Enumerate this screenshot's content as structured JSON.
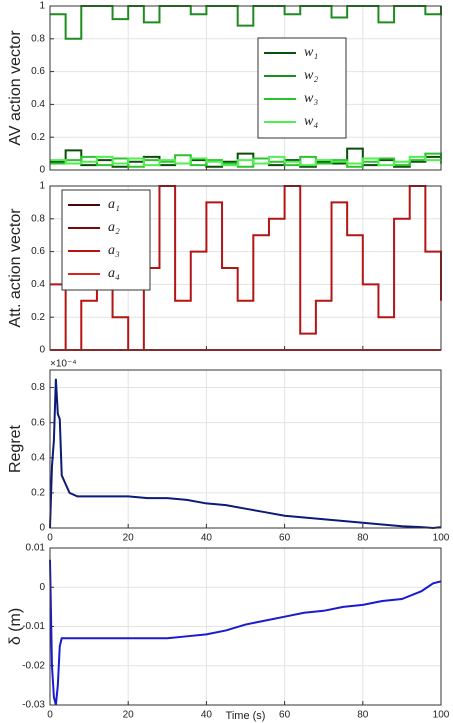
{
  "chart_data": [
    {
      "type": "line",
      "step": true,
      "ylabel": "AV action vector",
      "x": [
        0,
        4,
        8,
        12,
        16,
        20,
        24,
        28,
        32,
        36,
        40,
        44,
        48,
        52,
        56,
        60,
        64,
        68,
        72,
        76,
        80,
        84,
        88,
        92,
        96,
        100
      ],
      "series": [
        {
          "name": "w₁",
          "color": "#0b4d0b",
          "values": [
            0.05,
            0.12,
            0.03,
            0.06,
            0.02,
            0.05,
            0.08,
            0.03,
            0.04,
            0.06,
            0.02,
            0.05,
            0.1,
            0.04,
            0.03,
            0.06,
            0.02,
            0.05,
            0.04,
            0.13,
            0.03,
            0.06,
            0.02,
            0.05,
            0.08,
            0.04
          ]
        },
        {
          "name": "w₂",
          "color": "#1e8c1e",
          "values": [
            0.95,
            0.8,
            1,
            1,
            0.92,
            1,
            0.9,
            1,
            1,
            0.95,
            1,
            1,
            0.88,
            1,
            1,
            0.95,
            1,
            1,
            0.93,
            1,
            1,
            0.9,
            1,
            1,
            0.95,
            1
          ]
        },
        {
          "name": "w₃",
          "color": "#2fc22f",
          "values": [
            0.04,
            0.06,
            0.08,
            0.03,
            0.07,
            0.02,
            0.06,
            0.05,
            0.09,
            0.03,
            0.06,
            0.04,
            0.02,
            0.07,
            0.05,
            0.03,
            0.08,
            0.04,
            0.06,
            0.02,
            0.05,
            0.07,
            0.03,
            0.06,
            0.1,
            0.04
          ]
        },
        {
          "name": "w₄",
          "color": "#4ef04e",
          "values": [
            0.06,
            0.04,
            0.05,
            0.08,
            0.04,
            0.07,
            0.03,
            0.06,
            0.04,
            0.07,
            0.05,
            0.03,
            0.06,
            0.04,
            0.08,
            0.05,
            0.03,
            0.06,
            0.05,
            0.04,
            0.07,
            0.03,
            0.05,
            0.08,
            0.06,
            0.05
          ]
        }
      ],
      "xlim": [
        0,
        100
      ],
      "xticks": [
        0,
        20,
        40,
        60,
        80,
        100
      ],
      "show_xtick_labels": false,
      "ylim": [
        0,
        1
      ],
      "yticks": [
        0,
        0.2,
        0.4,
        0.6,
        0.8,
        1
      ],
      "grid": true,
      "legend": "center right"
    },
    {
      "type": "line",
      "step": true,
      "ylabel": "Att. action vector",
      "x": [
        0,
        4,
        8,
        12,
        16,
        20,
        24,
        28,
        32,
        36,
        40,
        44,
        48,
        52,
        56,
        60,
        64,
        68,
        72,
        76,
        80,
        84,
        88,
        92,
        96,
        100
      ],
      "series": [
        {
          "name": "a₁",
          "color": "#4a0505",
          "values": [
            0,
            0,
            0,
            0,
            0,
            0,
            0,
            0,
            0,
            0,
            0,
            0,
            0,
            0,
            0,
            0,
            0,
            0,
            0,
            0,
            0,
            0,
            0,
            0,
            0,
            0
          ]
        },
        {
          "name": "a₂",
          "color": "#7a0808",
          "values": [
            0,
            0,
            0,
            0,
            0,
            0,
            0,
            0,
            0,
            0,
            0,
            0,
            0,
            0,
            0,
            0,
            0,
            0,
            0,
            0,
            0,
            0,
            0,
            0,
            0,
            0
          ]
        },
        {
          "name": "a₃",
          "color": "#b51414",
          "values": [
            0.4,
            0,
            0.3,
            0.4,
            0.2,
            0,
            0.5,
            1,
            0.3,
            0.6,
            0.9,
            0.5,
            0.3,
            0.7,
            0.8,
            1,
            0.1,
            0.3,
            0.9,
            0.7,
            0.4,
            0.2,
            0.8,
            1,
            0.6,
            0.3
          ]
        },
        {
          "name": "a₄",
          "color": "#d42424",
          "values": [
            0,
            0,
            0,
            0,
            0,
            0,
            0,
            0,
            0,
            0,
            0,
            0,
            0,
            0,
            0,
            0,
            0,
            0,
            0,
            0,
            0,
            0,
            0,
            0,
            0,
            0
          ]
        }
      ],
      "xlim": [
        0,
        100
      ],
      "xticks": [
        0,
        20,
        40,
        60,
        80,
        100
      ],
      "show_xtick_labels": false,
      "ylim": [
        0,
        1
      ],
      "yticks": [
        0,
        0.2,
        0.4,
        0.6,
        0.8,
        1
      ],
      "grid": true,
      "legend": "upper left"
    },
    {
      "type": "line",
      "step": false,
      "ylabel": "Regret",
      "y_multiplier": "×10⁻⁴",
      "x": [
        0,
        0.5,
        1,
        1.5,
        2,
        2.5,
        3,
        4,
        5,
        7,
        10,
        15,
        20,
        25,
        30,
        35,
        40,
        45,
        50,
        55,
        60,
        65,
        70,
        75,
        80,
        85,
        90,
        95,
        98,
        100
      ],
      "series": [
        {
          "color": "#0c1a78",
          "values": [
            0,
            0.35,
            0.5,
            0.85,
            0.65,
            0.62,
            0.3,
            0.25,
            0.2,
            0.18,
            0.18,
            0.18,
            0.18,
            0.17,
            0.17,
            0.16,
            0.14,
            0.13,
            0.11,
            0.09,
            0.07,
            0.06,
            0.05,
            0.04,
            0.03,
            0.02,
            0.01,
            0.005,
            0,
            0.005
          ]
        }
      ],
      "xlim": [
        0,
        100
      ],
      "xticks": [
        0,
        20,
        40,
        60,
        80,
        100
      ],
      "show_xtick_labels": true,
      "ylim": [
        0,
        0.9
      ],
      "yticks": [
        0,
        0.2,
        0.4,
        0.6,
        0.8
      ],
      "grid": true
    },
    {
      "type": "line",
      "step": false,
      "ylabel": "δ (m)",
      "xlabel": "Time (s)",
      "x": [
        0,
        0.5,
        1,
        1.5,
        2,
        2.5,
        3,
        4,
        5,
        7,
        10,
        15,
        20,
        25,
        30,
        35,
        40,
        45,
        50,
        55,
        60,
        65,
        70,
        75,
        80,
        85,
        90,
        95,
        98,
        100
      ],
      "series": [
        {
          "color": "#1a1ad0",
          "values": [
            0.007,
            -0.02,
            -0.028,
            -0.03,
            -0.025,
            -0.015,
            -0.013,
            -0.013,
            -0.013,
            -0.013,
            -0.013,
            -0.013,
            -0.013,
            -0.013,
            -0.013,
            -0.0125,
            -0.012,
            -0.011,
            -0.0095,
            -0.0085,
            -0.0075,
            -0.0065,
            -0.006,
            -0.005,
            -0.0045,
            -0.0035,
            -0.003,
            -0.001,
            0.001,
            0.0015
          ]
        }
      ],
      "xlim": [
        0,
        100
      ],
      "xticks": [
        0,
        20,
        40,
        60,
        80,
        100
      ],
      "show_xtick_labels": true,
      "ylim": [
        -0.03,
        0.01
      ],
      "yticks": [
        -0.03,
        -0.02,
        -0.01,
        0,
        0.01
      ],
      "grid": true
    }
  ]
}
